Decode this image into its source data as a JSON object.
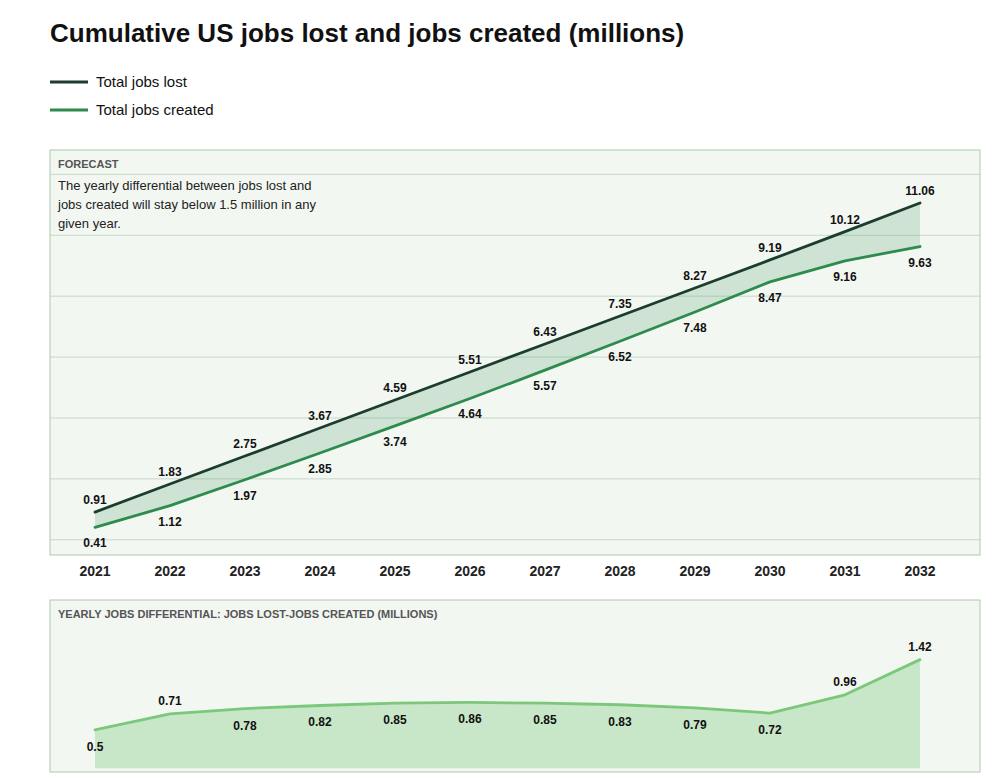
{
  "chart_data": [
    {
      "type": "line",
      "title": "Cumulative US jobs lost and jobs created (millions)",
      "x": [
        2021,
        2022,
        2023,
        2024,
        2025,
        2026,
        2027,
        2028,
        2029,
        2030,
        2031,
        2032
      ],
      "xlim": [
        2020.4,
        2032.8
      ],
      "xticks": [
        2021,
        2022,
        2023,
        2024,
        2025,
        2026,
        2027,
        2028,
        2029,
        2030,
        2031,
        2032
      ],
      "ylim": [
        -0.5,
        12.8
      ],
      "yticks": [
        0,
        2,
        4,
        6,
        8,
        10,
        12
      ],
      "grid": true,
      "tick_labels": "x",
      "legend": "upper left",
      "data_labels": true,
      "annotations": [
        "FORECAST",
        "The yearly differential between jobs lost and\njobs created will stay below 1.5 million in any\ngiven year."
      ],
      "series": [
        {
          "name": "Total jobs lost",
          "color": "#1c3d2e",
          "values": [
            0.91,
            1.83,
            2.75,
            3.67,
            4.59,
            5.51,
            6.43,
            7.35,
            8.27,
            9.19,
            10.12,
            11.06
          ]
        },
        {
          "name": "Total jobs created",
          "color": "#2e8b4e",
          "values": [
            0.41,
            1.12,
            1.97,
            2.85,
            3.74,
            4.64,
            5.57,
            6.52,
            7.48,
            8.47,
            9.16,
            9.63
          ]
        }
      ]
    },
    {
      "type": "area",
      "title": "YEARLY JOBS DIFFERENTIAL: JOBS LOST-JOBS CREATED (MILLIONS)",
      "x": [
        2021,
        2022,
        2023,
        2024,
        2025,
        2026,
        2027,
        2028,
        2029,
        2030,
        2031,
        2032
      ],
      "xlim": [
        2020.4,
        2032.8
      ],
      "ylim": [
        -0.05,
        2.2
      ],
      "grid": false,
      "tick_labels": false,
      "data_labels": true,
      "series": [
        {
          "color": "#7bc87a",
          "values": [
            0.5,
            0.71,
            0.78,
            0.82,
            0.85,
            0.86,
            0.85,
            0.83,
            0.79,
            0.72,
            0.96,
            1.42
          ]
        }
      ]
    }
  ]
}
